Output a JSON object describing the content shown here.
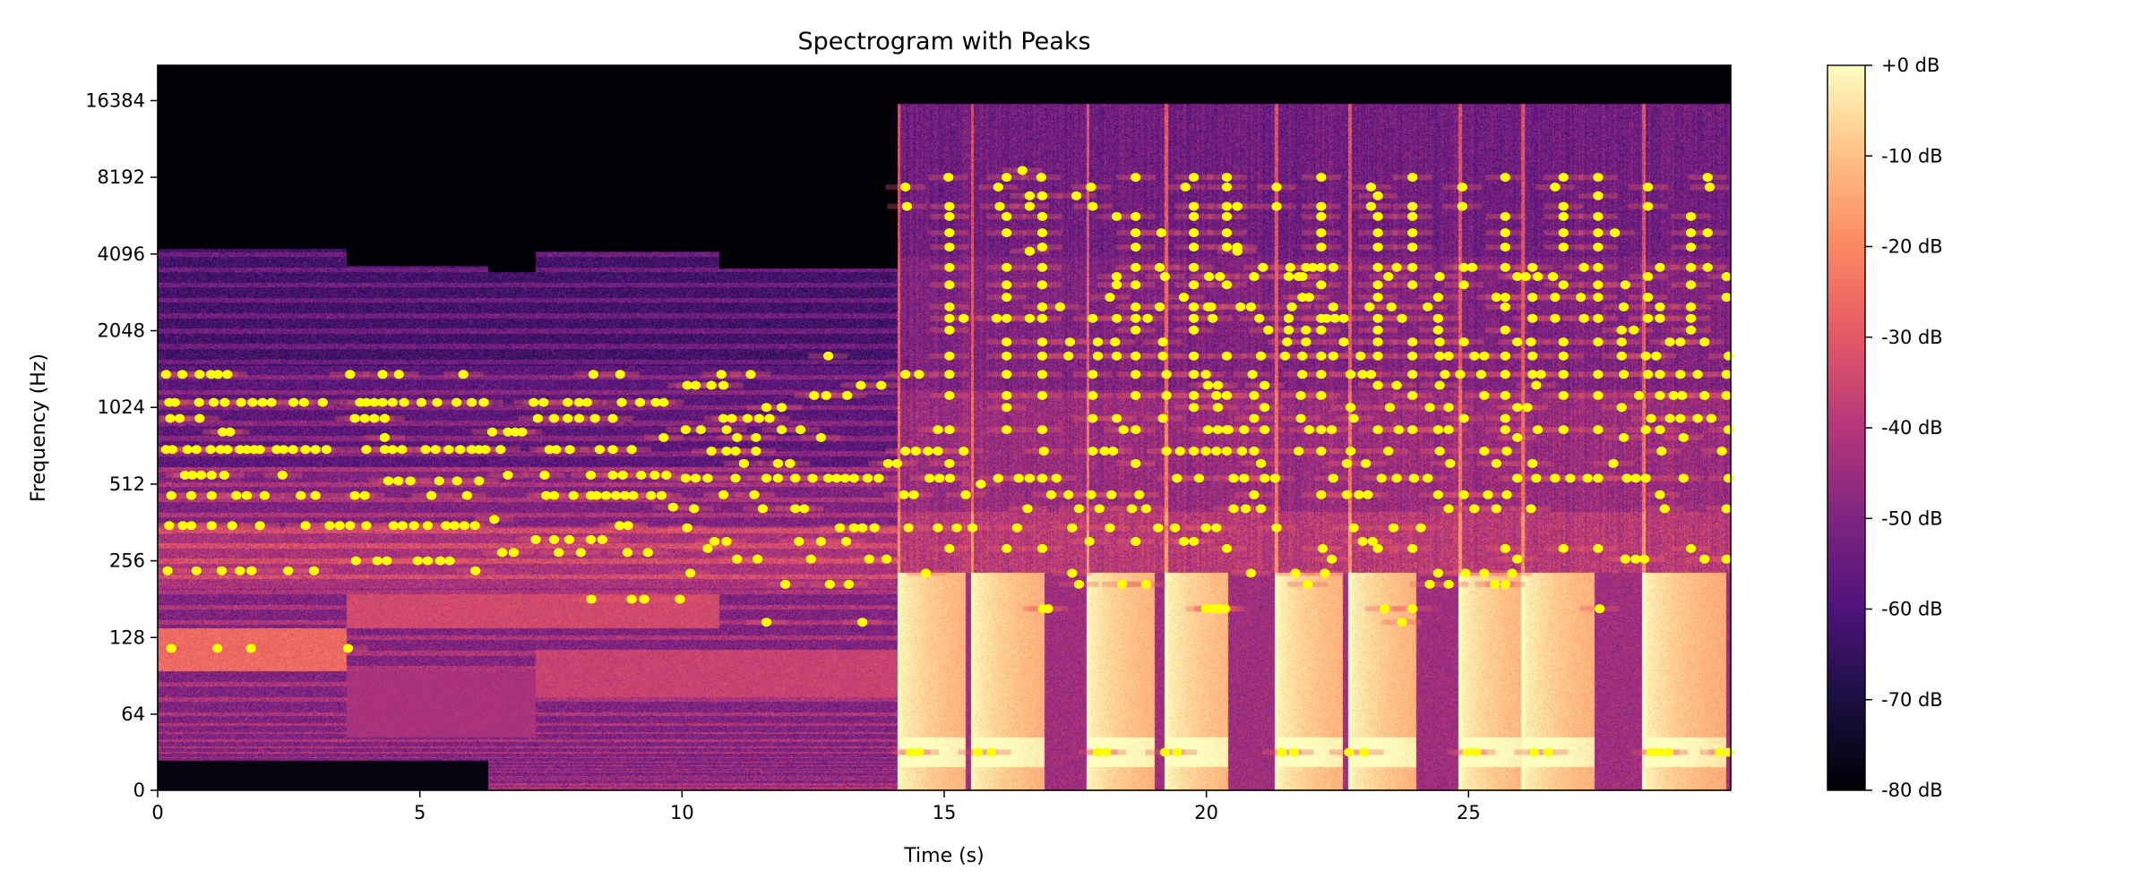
{
  "chart_data": {
    "type": "heatmap",
    "overlay_type": "scatter",
    "title": "Spectrogram with Peaks",
    "xlabel": "Time (s)",
    "ylabel": "Frequency (Hz)",
    "xlim": [
      0,
      30
    ],
    "ylim": [
      0,
      22050
    ],
    "y_scale": "log2 (linear below 64 Hz)",
    "colormap": "magma",
    "grid": false,
    "x_ticks": [
      0,
      5,
      10,
      15,
      20,
      25
    ],
    "x_tick_labels": [
      "0",
      "5",
      "10",
      "15",
      "20",
      "25"
    ],
    "y_ticks": [
      0,
      64,
      128,
      256,
      512,
      1024,
      2048,
      4096,
      8192,
      16384
    ],
    "y_tick_labels": [
      "0",
      "64",
      "128",
      "256",
      "512",
      "1024",
      "2048",
      "4096",
      "8192",
      "16384"
    ],
    "colorbar": {
      "range_db": [
        -80,
        0
      ],
      "ticks": [
        0,
        -10,
        -20,
        -30,
        -40,
        -50,
        -60,
        -70,
        -80
      ],
      "tick_labels": [
        "+0 dB",
        "-10 dB",
        "-20 dB",
        "-30 dB",
        "-40 dB",
        "-50 dB",
        "-60 dB",
        "-70 dB",
        "-80 dB"
      ],
      "placement": "right"
    },
    "peak_color": "#ffff00",
    "peaks_by_frequency": [
      {
        "f": 8710,
        "t": [
          16.49
        ]
      },
      {
        "f": 8192,
        "t": [
          15.08,
          16.19,
          16.85,
          18.65,
          19.76,
          20.39,
          22.19,
          23.93,
          25.7,
          26.81,
          27.47,
          29.56
        ]
      },
      {
        "f": 7500,
        "t": [
          14.26,
          16.03,
          17.8,
          19.6,
          20.39,
          21.34,
          23.14,
          24.88,
          26.65,
          28.42,
          29.6
        ]
      },
      {
        "f": 6930,
        "t": [
          16.63,
          16.87,
          17.52,
          23.27,
          27.47
        ]
      },
      {
        "f": 6300,
        "t": [
          14.29,
          15.1,
          16.06,
          16.63,
          17.83,
          19.76,
          20.39,
          20.59,
          21.34,
          22.19,
          23.14,
          23.93,
          24.88,
          26.81,
          28.42
        ]
      },
      {
        "f": 5750,
        "t": [
          15.1,
          16.19,
          16.87,
          18.29,
          18.65,
          19.76,
          20.39,
          22.19,
          23.27,
          23.93,
          25.7,
          26.81,
          27.47,
          29.24
        ]
      },
      {
        "f": 4960,
        "t": [
          15.1,
          16.19,
          16.87,
          18.65,
          19.14,
          19.76,
          20.39,
          22.19,
          23.27,
          23.93,
          25.7,
          26.81,
          27.47,
          27.79,
          29.24,
          29.56
        ]
      },
      {
        "f": 4360,
        "t": [
          15.1,
          16.87,
          18.65,
          19.76,
          20.39,
          20.59,
          22.19,
          23.27,
          23.93,
          25.7,
          26.81,
          27.47,
          29.24
        ]
      },
      {
        "f": 4200,
        "t": [
          16.63,
          20.59
        ]
      },
      {
        "f": 3630,
        "t": [
          15.1,
          16.19,
          16.87,
          18.65,
          19.11,
          19.76,
          21.08,
          21.6,
          21.9,
          22.03,
          22.19,
          22.42,
          23.27,
          23.63,
          23.93,
          24.91,
          25.07,
          25.7,
          26.22,
          27.2,
          27.47,
          28.65,
          29.24,
          29.56
        ]
      },
      {
        "f": 3340,
        "t": [
          18.29,
          19.21,
          20.05,
          20.26,
          20.91,
          21.57,
          21.76,
          21.83,
          23.47,
          24.45,
          25.93,
          26.09,
          26.32,
          26.61,
          28.42,
          29.92
        ]
      },
      {
        "f": 3100,
        "t": [
          15.1,
          16.19,
          16.87,
          18.29,
          18.65,
          19.76,
          20.39,
          22.19,
          23.27,
          23.93,
          24.91,
          26.81,
          27.47,
          27.99,
          29.24
        ]
      },
      {
        "f": 2770,
        "t": [
          16.19,
          18.16,
          19.57,
          21.83,
          21.96,
          23.27,
          24.42,
          25.53,
          25.7,
          26.22,
          26.65,
          27.14,
          27.47,
          28.42,
          29.92
        ]
      },
      {
        "f": 2540,
        "t": [
          15.1,
          16.87,
          17.21,
          18.65,
          19.11,
          19.76,
          20.03,
          20.09,
          20.65,
          20.85,
          21.63,
          22.42,
          23.11,
          23.53,
          24.22,
          25.7,
          27.96,
          28.65,
          29.24
        ]
      },
      {
        "f": 2290,
        "t": [
          15.1,
          15.37,
          16.0,
          16.19,
          16.63,
          16.87,
          17.83,
          18.29,
          18.65,
          18.88,
          19.76,
          20.12,
          21.01,
          21.57,
          22.19,
          22.29,
          22.45,
          22.62,
          23.27,
          23.73,
          24.42,
          26.22,
          26.65,
          27.2,
          27.47,
          28.42,
          28.65,
          29.24
        ]
      },
      {
        "f": 2060,
        "t": [
          15.1,
          18.65,
          19.76,
          21.18,
          21.57,
          21.9,
          22.19,
          23.27,
          24.42,
          25.7,
          27.92,
          28.15,
          29.24
        ]
      },
      {
        "f": 1850,
        "t": [
          16.19,
          16.87,
          17.4,
          17.93,
          18.26,
          19.17,
          21.54,
          21.9,
          22.62,
          23.27,
          23.93,
          24.45,
          24.91,
          25.93,
          26.19,
          26.81,
          27.47,
          27.92,
          28.84,
          29.04,
          29.5
        ]
      },
      {
        "f": 1630,
        "t": [
          12.79,
          15.1,
          16.19,
          16.87,
          17.37,
          17.93,
          18.29,
          18.65,
          19.17,
          19.76,
          20.39,
          21.04,
          21.5,
          21.83,
          22.19,
          22.42,
          22.94,
          23.27,
          23.93,
          24.45,
          24.62,
          25.11,
          25.3,
          25.7,
          26.22,
          26.81,
          27.92,
          28.38,
          28.58,
          29.96
        ]
      },
      {
        "f": 1380,
        "t": [
          0.16,
          0.47,
          0.8,
          1.02,
          1.15,
          1.33,
          3.67,
          4.29,
          4.6,
          5.83,
          8.31,
          8.82,
          10.75,
          11.31,
          14.26,
          14.52,
          15.1,
          16.19,
          16.87,
          17.83,
          18.65,
          19.24,
          19.76,
          19.99,
          20.88,
          21.83,
          22.19,
          22.75,
          22.98,
          23.14,
          23.93,
          24.55,
          24.84,
          25.24,
          25.7,
          26.22,
          26.38,
          26.81,
          27.47,
          27.96,
          28.42,
          28.65,
          29.04,
          29.37,
          29.92
        ]
      },
      {
        "f": 1250,
        "t": [
          10.1,
          10.26,
          10.56,
          10.79,
          13.41,
          13.8,
          20.03,
          20.22,
          21.11,
          23.27,
          23.63,
          24.45,
          26.29
        ]
      },
      {
        "f": 1140,
        "t": [
          12.52,
          12.75,
          13.15,
          15.1,
          16.19,
          16.87,
          17.83,
          18.65,
          19.24,
          19.76,
          20.19,
          20.39,
          20.91,
          21.8,
          22.19,
          23.93,
          25.3,
          25.7,
          26.81,
          27.47,
          28.25,
          28.65,
          28.91,
          29.07,
          29.5,
          29.92
        ]
      },
      {
        "f": 1071,
        "t": [
          0.22,
          0.33,
          0.79,
          1.07,
          1.28,
          1.59,
          1.81,
          2.0,
          2.17,
          2.59,
          2.79,
          3.15,
          3.86,
          3.98,
          4.13,
          4.29,
          4.48,
          4.7,
          5.03,
          5.33,
          5.7,
          5.99,
          6.22,
          7.17,
          7.36,
          7.82,
          8.04,
          8.19,
          8.85,
          9.2,
          9.5,
          9.65
        ]
      },
      {
        "f": 1024,
        "t": [
          11.61,
          11.9,
          16.19,
          19.76,
          20.22,
          21.11,
          22.75,
          23.5,
          24.26,
          24.62,
          25.93,
          26.12,
          27.92
        ]
      },
      {
        "f": 927,
        "t": [
          0.24,
          0.42,
          0.8,
          3.76,
          3.95,
          4.13,
          4.33,
          7.25,
          7.56,
          7.82,
          8.04,
          8.34,
          8.68,
          10.79,
          10.95,
          11.25,
          11.47,
          11.67,
          17.83,
          18.29,
          19.17,
          20.91,
          21.8,
          22.81,
          24.91,
          25.7,
          28.48,
          28.84,
          29.04,
          29.37,
          29.63
        ]
      },
      {
        "f": 837,
        "t": [
          10.07,
          10.36,
          10.85,
          11.9,
          12.26,
          14.88,
          15.1,
          16.19,
          16.87,
          18.42,
          18.65,
          20.03,
          20.22,
          20.39,
          20.42,
          20.72,
          21.11,
          21.96,
          22.19,
          22.39,
          23.27,
          23.67,
          23.93,
          24.42,
          24.62,
          25.7,
          26.32,
          26.81,
          27.47,
          28.38,
          28.65,
          29.96
        ]
      },
      {
        "f": 820,
        "t": [
          1.24,
          1.38,
          6.38,
          6.68,
          6.82,
          6.95
        ]
      },
      {
        "f": 780,
        "t": [
          4.33,
          9.65,
          11.05,
          11.41,
          12.65,
          25.93,
          27.96,
          29.1
        ]
      },
      {
        "f": 700,
        "t": [
          0.16,
          0.28,
          0.57,
          0.74,
          1.01,
          1.2,
          1.33,
          1.57,
          1.7,
          1.84,
          1.95,
          2.27,
          2.4,
          2.58,
          2.82,
          3.01,
          3.22,
          3.98,
          4.33,
          4.48,
          4.66,
          5.11,
          5.3,
          5.55,
          5.77,
          5.99,
          6.13,
          6.25,
          6.54,
          7.47,
          7.6,
          7.86,
          8.43,
          8.68,
          9.04
        ]
      },
      {
        "f": 690,
        "t": [
          10.56,
          10.85,
          11.02,
          11.41,
          14.26,
          14.46,
          14.69,
          14.88,
          15.37,
          16.9,
          17.83,
          18.06,
          18.22,
          19.24,
          19.5,
          19.76,
          19.99,
          20.19,
          20.39,
          20.68,
          20.91,
          21.76,
          22.19,
          22.75,
          23.47,
          24.45,
          25.3,
          25.73,
          28.68,
          29.83
        ]
      },
      {
        "f": 617,
        "t": [
          11.18,
          11.83,
          12.06,
          13.93,
          14.1,
          15.1,
          18.65,
          21.04,
          22.68,
          23.04,
          24.65,
          25.53,
          26.22,
          27.76
        ]
      },
      {
        "f": 555,
        "t": [
          0.52,
          0.66,
          0.83,
          1.03,
          1.27,
          2.38,
          6.68,
          7.38,
          8.26,
          8.68,
          8.87,
          9.22,
          9.48,
          9.7
        ]
      },
      {
        "f": 540,
        "t": [
          10.07,
          10.26,
          10.49,
          11.02,
          11.61,
          11.83,
          12.16,
          12.49,
          12.79,
          12.95,
          13.11,
          13.28,
          13.54,
          13.75,
          14.72,
          14.91,
          15.11,
          16.03,
          16.42,
          16.63,
          16.87,
          17.14,
          19.44,
          19.86,
          20.52,
          20.72,
          21.11,
          21.31,
          22.42,
          23.34,
          23.63,
          23.96,
          24.22,
          25.93,
          26.29,
          26.65,
          26.94,
          27.27,
          27.47,
          28.02,
          28.19,
          28.38,
          29.1,
          29.96
        ]
      },
      {
        "f": 527,
        "t": [
          4.4,
          4.59,
          4.82,
          5.37,
          5.71,
          6.13
        ]
      },
      {
        "f": 512,
        "t": [
          15.7
        ]
      },
      {
        "f": 465,
        "t": [
          10.79,
          11.38,
          14.23,
          14.42,
          15.41,
          17.04,
          17.37,
          17.8,
          18.19,
          18.72,
          20.91,
          22.19,
          22.68,
          22.91,
          23.08,
          24.42,
          24.91,
          25.37,
          25.73,
          28.65
        ]
      },
      {
        "f": 462,
        "t": [
          0.26,
          0.64,
          1.03,
          1.5,
          1.7,
          2.04,
          2.73,
          3.01,
          3.76,
          3.95,
          5.22,
          5.9,
          7.41,
          7.56,
          7.93,
          8.26,
          8.37,
          8.55,
          8.74,
          8.91,
          9.07,
          9.41,
          9.61
        ]
      },
      {
        "f": 416,
        "t": [
          9.83
        ]
      },
      {
        "f": 410,
        "t": [
          10.23,
          11.54,
          12.16,
          12.33,
          16.59,
          17.57,
          17.96,
          18.58,
          18.85,
          20.52,
          20.75,
          21.04,
          24.62,
          25.11,
          25.53,
          26.19,
          28.74,
          29.92
        ]
      },
      {
        "f": 372,
        "t": [
          6.42
        ]
      },
      {
        "f": 352,
        "t": [
          0.22,
          0.48,
          0.64,
          1.03,
          1.42,
          1.95,
          2.82,
          3.28,
          3.47,
          3.67,
          3.98,
          4.5,
          4.67,
          4.89,
          5.15,
          5.5,
          5.66,
          5.85,
          6.05,
          8.81,
          8.97
        ]
      },
      {
        "f": 345,
        "t": [
          10.1,
          13.01,
          13.28,
          13.44,
          13.67,
          14.32,
          14.88,
          15.24,
          15.54,
          16.39,
          17.44,
          18.16,
          19.08,
          19.4,
          19.99,
          20.19,
          21.34,
          22.81,
          23.57,
          24.09
        ]
      },
      {
        "f": 310,
        "t": [
          7.21,
          7.56,
          7.85,
          8.26,
          8.48
        ]
      },
      {
        "f": 305,
        "t": [
          10.62,
          10.85,
          12.23,
          12.65,
          13.13,
          17.77,
          18.65,
          19.57,
          19.76,
          22.98,
          23.17
        ]
      },
      {
        "f": 286,
        "t": [
          10.49,
          15.1,
          16.19,
          16.87,
          20.39,
          22.22,
          23.27,
          23.93,
          25.7,
          26.81,
          27.47,
          29.24
        ]
      },
      {
        "f": 276,
        "t": [
          6.57,
          6.79,
          7.65,
          8.07,
          8.96,
          9.35
        ]
      },
      {
        "f": 260,
        "t": [
          11.05,
          11.44,
          12.46,
          13.57,
          13.9,
          22.39,
          25.93,
          27.99,
          28.19,
          28.35,
          29.5,
          29.92
        ]
      },
      {
        "f": 256,
        "t": [
          3.78,
          4.19,
          4.37,
          4.96,
          5.15,
          5.39,
          5.57
        ]
      },
      {
        "f": 234,
        "t": [
          0.19,
          0.74,
          1.22,
          1.57,
          1.79,
          2.49,
          2.98,
          6.06
        ]
      },
      {
        "f": 229,
        "t": [
          10.16,
          14.65,
          17.44,
          20.85,
          21.7,
          22.26,
          24.42,
          24.94,
          25.3,
          25.83
        ]
      },
      {
        "f": 207,
        "t": [
          11.97,
          12.82,
          13.18,
          17.57,
          18.39,
          18.85,
          21.93,
          24.26,
          24.62,
          25.5,
          25.7
        ]
      },
      {
        "f": 181,
        "t": [
          8.27,
          9.04,
          9.28,
          9.96
        ]
      },
      {
        "f": 166,
        "t": [
          16.88,
          16.98,
          19.99,
          20.13,
          20.19,
          20.26,
          20.36,
          23.4,
          23.93,
          27.5
        ]
      },
      {
        "f": 147,
        "t": [
          11.61,
          13.44,
          23.73
        ]
      },
      {
        "f": 116,
        "t": [
          0.26,
          1.14,
          1.78,
          3.63
        ]
      },
      {
        "f": 32,
        "t": [
          14.36,
          14.52,
          15.64,
          15.9,
          17.93,
          18.09,
          19.21,
          19.44,
          21.44,
          21.67,
          22.72,
          23.01,
          24.98,
          25.14,
          26.25,
          26.52,
          28.48,
          28.65,
          28.81,
          29.79,
          29.96
        ]
      }
    ]
  }
}
